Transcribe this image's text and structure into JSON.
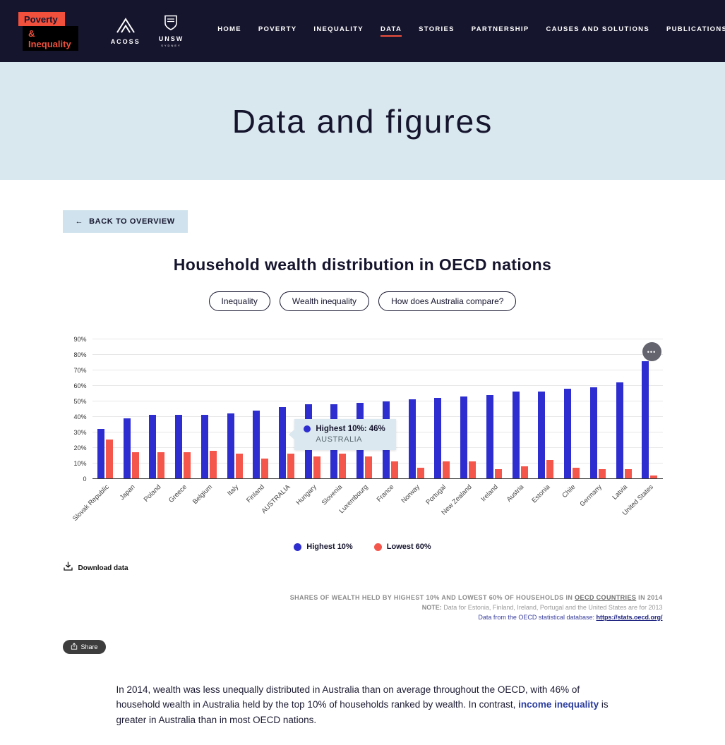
{
  "header": {
    "logo": {
      "line1": "Poverty",
      "line2": "& Inequality"
    },
    "acoss_label": "ACOSS",
    "unsw_label": "UNSW",
    "unsw_sub": "SYDNEY",
    "accent_color": "#f0503c",
    "nav": [
      {
        "label": "HOME",
        "active": false
      },
      {
        "label": "POVERTY",
        "active": false
      },
      {
        "label": "INEQUALITY",
        "active": false
      },
      {
        "label": "DATA",
        "active": true
      },
      {
        "label": "STORIES",
        "active": false
      },
      {
        "label": "PARTNERSHIP",
        "active": false
      },
      {
        "label": "CAUSES AND SOLUTIONS",
        "active": false
      },
      {
        "label": "PUBLICATIONS",
        "active": false
      }
    ]
  },
  "hero": {
    "title": "Data and figures"
  },
  "back_button": {
    "arrow": "←",
    "label": "BACK TO OVERVIEW"
  },
  "article": {
    "title": "Household wealth distribution in OECD nations",
    "tags": [
      "Inequality",
      "Wealth inequality",
      "How does Australia compare?"
    ]
  },
  "chart_data": {
    "type": "bar",
    "title": "Shares of wealth held by highest 10% and lowest 60% of households in OECD countries in 2014",
    "categories": [
      "Slovak Republic",
      "Japan",
      "Poland",
      "Greece",
      "Belgium",
      "Italy",
      "Finland",
      "AUSTRALIA",
      "Hungary",
      "Slovenia",
      "Luxembourg",
      "France",
      "Norway",
      "Portugal",
      "New Zealand",
      "Ireland",
      "Austria",
      "Estonia",
      "Chile",
      "Germany",
      "Latvia",
      "United States"
    ],
    "series": [
      {
        "name": "Highest 10%",
        "color": "#2e2ed0",
        "values": [
          32,
          39,
          41,
          41,
          41,
          42,
          44,
          46,
          48,
          48,
          49,
          50,
          51,
          52,
          53,
          54,
          56,
          56,
          58,
          59,
          62,
          76
        ]
      },
      {
        "name": "Lowest 60%",
        "color": "#f5564c",
        "values": [
          25,
          17,
          17,
          17,
          18,
          16,
          13,
          16,
          14,
          16,
          14,
          11,
          7,
          11,
          11,
          6,
          8,
          12,
          7,
          6,
          6,
          2
        ]
      }
    ],
    "ylim": [
      0,
      90
    ],
    "ytick_step": 10,
    "ytick_labels": [
      "0",
      "10%",
      "20%",
      "30%",
      "40%",
      "50%",
      "60%",
      "70%",
      "80%",
      "90%"
    ],
    "grid": true,
    "legend_position": "bottom",
    "tooltip": {
      "series": "Highest 10%",
      "text": "Highest 10%: 46%",
      "label": "AUSTRALIA",
      "category_index": 7
    }
  },
  "chart_controls": {
    "menu_icon": "•••"
  },
  "download": {
    "label": "Download data"
  },
  "caption": {
    "line1_prefix": "SHARES OF WEALTH HELD BY HIGHEST 10% AND LOWEST 60% OF HOUSEHOLDS IN ",
    "line1_link": "OECD COUNTRIES",
    "line1_suffix": " IN 2014",
    "note_label": "NOTE:",
    "note_text": " Data for Estonia, Finland, Ireland, Portugal and the United States are for 2013",
    "source_prefix": "Data from the OECD statistical database: ",
    "source_link": "https://stats.oecd.org/"
  },
  "share": {
    "label": "Share"
  },
  "paragraph": {
    "part1": "In 2014,  wealth was less unequally distributed in Australia than on average throughout the OECD, with 46% of household wealth in Australia held by the top 10% of households ranked by wealth. In contrast, ",
    "link": "income inequality",
    "part2": " is greater in Australia than in most OECD nations."
  }
}
